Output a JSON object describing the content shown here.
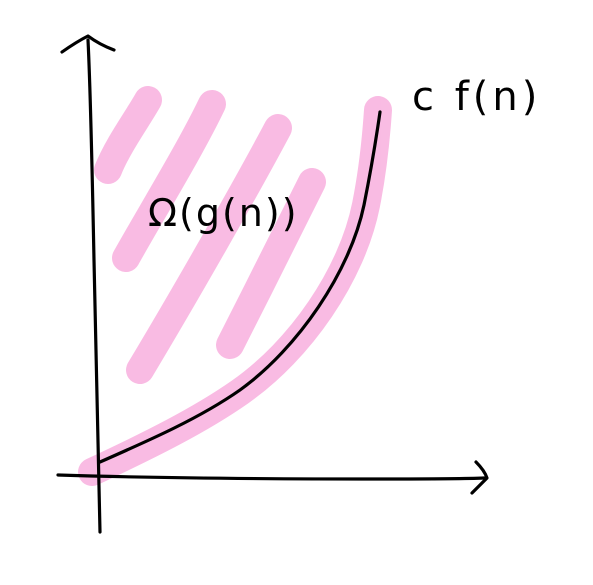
{
  "labels": {
    "curve_label": "c f(n)",
    "region_label": "Ω(g(n))"
  },
  "colors": {
    "ink": "#000000",
    "highlight": "#f9b8e2",
    "background": "#ffffff"
  }
}
